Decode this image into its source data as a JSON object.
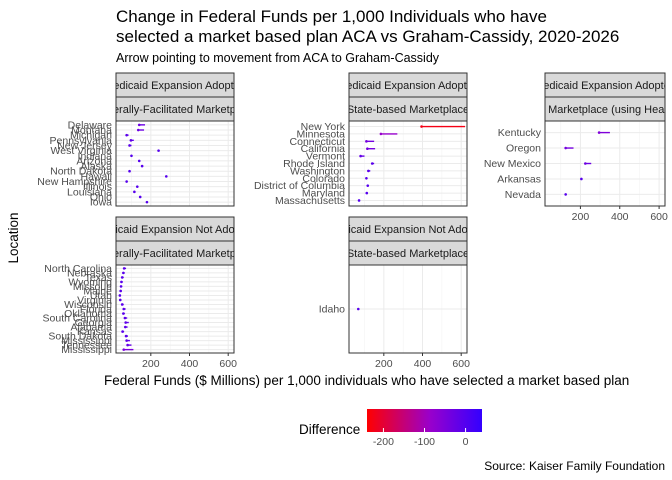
{
  "chart_data": {
    "type": "dumbbell",
    "title_line1": "Change in Federal Funds per 1,000 Individuals who have",
    "title_line2": "selected a market based plan ACA vs Graham-Cassidy, 2020-2026",
    "subtitle": "Arrow pointing to movement from ACA to Graham-Cassidy",
    "xlabel": "Federal Funds ($ Millions) per 1,000 individuals who have selected a market based plan",
    "ylabel": "Location",
    "caption": "Source: Kaiser Family Foundation",
    "xlim": [
      20,
      630
    ],
    "x_ticks": [
      200,
      400,
      600
    ],
    "legend": {
      "title": "Difference",
      "ticks": [
        -200,
        -100,
        0
      ],
      "range": [
        -240,
        40
      ],
      "low_color": "#ff0000",
      "mid_color": "#9900cc",
      "high_color": "#3300ff",
      "position": "bottom"
    },
    "panels": [
      {
        "strip1": "Medicaid Expansion Adopted",
        "strip2": "Federally-Facilitated Marketplace",
        "rows": [
          {
            "label": "Delaware",
            "aca": 170,
            "gc": 140
          },
          {
            "label": "Montana",
            "aca": 165,
            "gc": 135
          },
          {
            "label": "Michigan",
            "aca": 85,
            "gc": 75
          },
          {
            "label": "Pennsylvania",
            "aca": 112,
            "gc": 97
          },
          {
            "label": "New Jersey",
            "aca": 100,
            "gc": 90
          },
          {
            "label": "West Virginia",
            "aca": 245,
            "gc": 240
          },
          {
            "label": "Indiana",
            "aca": 105,
            "gc": 100
          },
          {
            "label": "Arizona",
            "aca": 145,
            "gc": 140
          },
          {
            "label": "Alaska",
            "aca": 160,
            "gc": 155
          },
          {
            "label": "North Dakota",
            "aca": 95,
            "gc": 90
          },
          {
            "label": "Hawaii",
            "aca": 285,
            "gc": 280
          },
          {
            "label": "New Hampshire",
            "aca": 80,
            "gc": 75
          },
          {
            "label": "Illinois",
            "aca": 135,
            "gc": 130
          },
          {
            "label": "Louisiana",
            "aca": 120,
            "gc": 115
          },
          {
            "label": "Ohio",
            "aca": 150,
            "gc": 145
          },
          {
            "label": "Iowa",
            "aca": 185,
            "gc": 180
          }
        ]
      },
      {
        "strip1": "Medicaid Expansion Adopted",
        "strip2": "State-based Marketplace",
        "rows": [
          {
            "label": "New York",
            "aca": 620,
            "gc": 395
          },
          {
            "label": "Minnesota",
            "aca": 270,
            "gc": 185
          },
          {
            "label": "Connecticut",
            "aca": 150,
            "gc": 110
          },
          {
            "label": "California",
            "aca": 155,
            "gc": 115
          },
          {
            "label": "Vermont",
            "aca": 100,
            "gc": 80
          },
          {
            "label": "Rhode Island",
            "aca": 150,
            "gc": 140
          },
          {
            "label": "Washington",
            "aca": 130,
            "gc": 120
          },
          {
            "label": "Colorado",
            "aca": 115,
            "gc": 110
          },
          {
            "label": "District of Columbia",
            "aca": 120,
            "gc": 117
          },
          {
            "label": "Maryland",
            "aca": 115,
            "gc": 112
          },
          {
            "label": "Massachusetts",
            "aca": 75,
            "gc": 72
          }
        ]
      },
      {
        "strip1": "Medicaid Expansion Adopted",
        "strip2": "State-based Marketplace (using HealthCare.gov)",
        "rows": [
          {
            "label": "Kentucky",
            "aca": 350,
            "gc": 295
          },
          {
            "label": "Oregon",
            "aca": 165,
            "gc": 125
          },
          {
            "label": "New Mexico",
            "aca": 255,
            "gc": 225
          },
          {
            "label": "Arkansas",
            "aca": 210,
            "gc": 205
          },
          {
            "label": "Nevada",
            "aca": 130,
            "gc": 125
          }
        ]
      },
      {
        "strip1": "Medicaid Expansion Not Adopted",
        "strip2": "Federally-Facilitated Marketplace",
        "rows": [
          {
            "label": "North Carolina",
            "aca": 72,
            "gc": 62
          },
          {
            "label": "Nebraska",
            "aca": 65,
            "gc": 58
          },
          {
            "label": "Texas",
            "aca": 60,
            "gc": 52
          },
          {
            "label": "Wyoming",
            "aca": 55,
            "gc": 48
          },
          {
            "label": "Missouri",
            "aca": 52,
            "gc": 46
          },
          {
            "label": "Maine",
            "aca": 50,
            "gc": 44
          },
          {
            "label": "Utah",
            "aca": 45,
            "gc": 40
          },
          {
            "label": "Virginia",
            "aca": 48,
            "gc": 42
          },
          {
            "label": "Wisconsin",
            "aca": 60,
            "gc": 52
          },
          {
            "label": "Florida",
            "aca": 70,
            "gc": 60
          },
          {
            "label": "Oklahoma",
            "aca": 66,
            "gc": 58
          },
          {
            "label": "South Carolina",
            "aca": 78,
            "gc": 66
          },
          {
            "label": "Georgia",
            "aca": 86,
            "gc": 70
          },
          {
            "label": "Alabama",
            "aca": 80,
            "gc": 68
          },
          {
            "label": "Kansas",
            "aca": 62,
            "gc": 54
          },
          {
            "label": "South Dakota",
            "aca": 82,
            "gc": 72
          },
          {
            "label": "Mississippi",
            "aca": 92,
            "gc": 75
          },
          {
            "label": "Tennessee",
            "aca": 100,
            "gc": 80
          },
          {
            "label": "Mississippi ",
            "aca": 110,
            "gc": 60
          }
        ]
      },
      {
        "strip1": "Medicaid Expansion Not Adopted",
        "strip2": "State-based Marketplace",
        "rows": [
          {
            "label": "Idaho",
            "aca": 72,
            "gc": 68
          }
        ]
      }
    ]
  }
}
